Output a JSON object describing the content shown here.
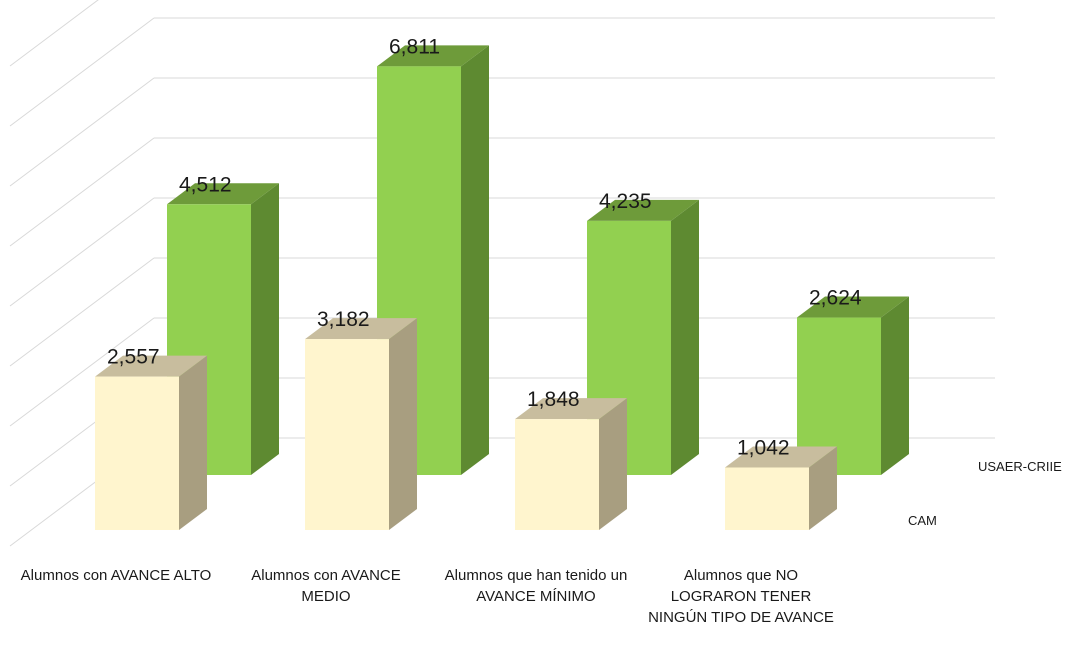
{
  "chart_data": {
    "type": "bar",
    "categories": [
      "Alumnos con AVANCE ALTO",
      "Alumnos con AVANCE MEDIO",
      "Alumnos que han tenido un AVANCE MÍNIMO",
      "Alumnos que NO LOGRARON TENER NINGÚN TIPO DE AVANCE"
    ],
    "series": [
      {
        "name": "CAM",
        "values": [
          2557,
          3182,
          1848,
          1042
        ]
      },
      {
        "name": "USAER-CRIIE",
        "values": [
          4512,
          6811,
          4235,
          2624
        ]
      }
    ],
    "data_labels": {
      "CAM": [
        "2,557",
        "3,182",
        "1,848",
        "1,042"
      ],
      "USAER-CRIIE": [
        "4,512",
        "6,811",
        "4,235",
        "2,624"
      ]
    },
    "title": "",
    "xlabel": "",
    "ylabel": "",
    "ylim": [
      0,
      8000
    ],
    "grid": true,
    "legend": "right",
    "style": "3d-column",
    "colors": {
      "CAM": {
        "front": "#FFF5CE",
        "side": "#A89E80",
        "top": "#C8BD9E"
      },
      "USAER-CRIIE": {
        "front": "#92D050",
        "side": "#5E8A31",
        "top": "#6E9B3A"
      },
      "grid": "#D9D9D9"
    }
  }
}
